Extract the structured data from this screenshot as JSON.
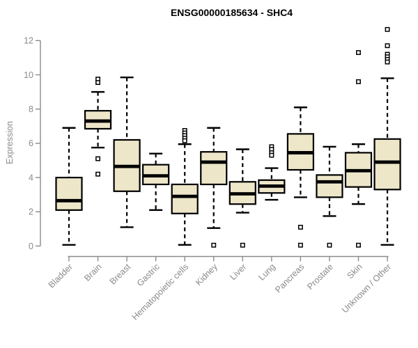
{
  "chart_data": {
    "type": "boxplot",
    "title": "ENSG00000185634 - SHC4",
    "ylabel": "Expression",
    "xlabel": "",
    "ylim": [
      0,
      12
    ],
    "yticks": [
      0,
      2,
      4,
      6,
      8,
      10,
      12
    ],
    "grid": false,
    "legend": "none",
    "colors": {
      "box_fill": "#EDE6C9",
      "box_stroke": "#000000",
      "median": "#000000",
      "whisker": "#000000",
      "outlier_stroke": "#000000",
      "axis": "#8a8a8a",
      "title": "#000000",
      "background": "#ffffff"
    },
    "categories": [
      "Bladder",
      "Brain",
      "Breast",
      "Gastric",
      "Hematopoietic cells",
      "Kidney",
      "Liver",
      "Lung",
      "Pancreas",
      "Prostate",
      "Skin",
      "Unknown / Other"
    ],
    "series": [
      {
        "name": "Bladder",
        "whisker_low": 0.07,
        "q1": 2.1,
        "median": 2.65,
        "q3": 4.0,
        "whisker_high": 6.9,
        "outliers": []
      },
      {
        "name": "Brain",
        "whisker_low": 5.75,
        "q1": 6.85,
        "median": 7.3,
        "q3": 7.9,
        "whisker_high": 9.0,
        "outliers": [
          9.75,
          9.55,
          5.1,
          4.2
        ]
      },
      {
        "name": "Breast",
        "whisker_low": 1.1,
        "q1": 3.2,
        "median": 4.65,
        "q3": 6.2,
        "whisker_high": 9.85,
        "outliers": []
      },
      {
        "name": "Gastric",
        "whisker_low": 2.1,
        "q1": 3.6,
        "median": 4.1,
        "q3": 4.75,
        "whisker_high": 5.4,
        "outliers": []
      },
      {
        "name": "Hematopoietic cells",
        "whisker_low": 0.07,
        "q1": 1.9,
        "median": 2.9,
        "q3": 3.6,
        "whisker_high": 5.95,
        "outliers": [
          6.75,
          6.6,
          6.45,
          6.3,
          6.15
        ]
      },
      {
        "name": "Kidney",
        "whisker_low": 1.05,
        "q1": 3.6,
        "median": 4.9,
        "q3": 5.5,
        "whisker_high": 6.9,
        "outliers": [
          0.05
        ]
      },
      {
        "name": "Liver",
        "whisker_low": 1.95,
        "q1": 2.45,
        "median": 3.05,
        "q3": 3.75,
        "whisker_high": 5.65,
        "outliers": [
          0.05
        ]
      },
      {
        "name": "Lung",
        "whisker_low": 2.7,
        "q1": 3.1,
        "median": 3.5,
        "q3": 3.85,
        "whisker_high": 4.55,
        "outliers": [
          5.8,
          5.65,
          5.45,
          5.3
        ]
      },
      {
        "name": "Pancreas",
        "whisker_low": 2.85,
        "q1": 4.45,
        "median": 5.45,
        "q3": 6.55,
        "whisker_high": 8.1,
        "outliers": [
          1.1,
          0.05
        ]
      },
      {
        "name": "Prostate",
        "whisker_low": 1.75,
        "q1": 2.85,
        "median": 3.75,
        "q3": 4.15,
        "whisker_high": 5.8,
        "outliers": [
          0.05
        ]
      },
      {
        "name": "Skin",
        "whisker_low": 2.45,
        "q1": 3.45,
        "median": 4.4,
        "q3": 5.45,
        "whisker_high": 5.95,
        "outliers": [
          11.3,
          9.6,
          0.05
        ]
      },
      {
        "name": "Unknown / Other",
        "whisker_low": 0.07,
        "q1": 3.3,
        "median": 4.9,
        "q3": 6.25,
        "whisker_high": 9.8,
        "outliers": [
          12.65,
          11.7,
          11.2,
          11.05,
          10.9,
          10.75
        ]
      }
    ]
  }
}
